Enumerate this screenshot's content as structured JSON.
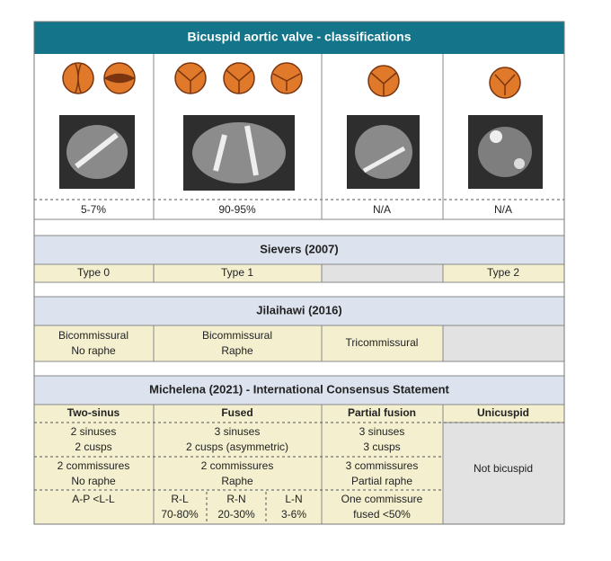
{
  "header": {
    "title": "Bicuspid aortic valve - classifications"
  },
  "percentages": [
    "5-7%",
    "90-95%",
    "N/A",
    "N/A"
  ],
  "sievers": {
    "title": "Sievers (2007)",
    "types": [
      "Type 0",
      "Type 1",
      "Type 2"
    ]
  },
  "jilaihawi": {
    "title": "Jilaihawi (2016)",
    "cells": [
      [
        "Bicommissural",
        "No raphe"
      ],
      [
        "Bicommissural",
        "Raphe"
      ],
      [
        "Tricommissural"
      ]
    ]
  },
  "michelena": {
    "title": "Michelena (2021) - International Consensus Statement",
    "columns": [
      "Two-sinus",
      "Fused",
      "Partial fusion",
      "Unicuspid"
    ],
    "sinuses": [
      [
        "2 sinuses",
        "2 cusps"
      ],
      [
        "3 sinuses",
        "2 cusps (asymmetric)"
      ],
      [
        "3 sinuses",
        "3 cusps"
      ]
    ],
    "commissures": [
      [
        "2 commissures",
        "No raphe"
      ],
      [
        "2 commissures",
        "Raphe"
      ],
      [
        "3 commissures",
        "Partial raphe"
      ]
    ],
    "unicuspid": "Not bicuspid",
    "two_sinus_note": "A-P <L-L",
    "fused_types": [
      [
        "R-L",
        "70-80%"
      ],
      [
        "R-N",
        "20-30%"
      ],
      [
        "L-N",
        "3-6%"
      ]
    ],
    "partial_note": [
      "One commissure",
      "fused <50%"
    ]
  }
}
